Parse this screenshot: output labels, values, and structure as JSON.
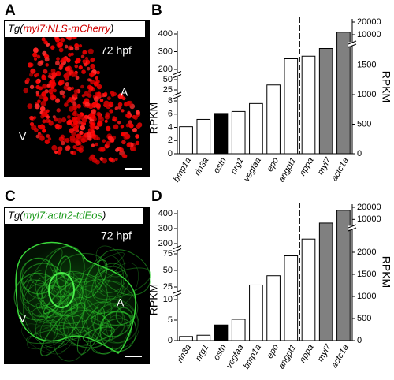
{
  "panels": {
    "A": {
      "letter": "A",
      "tg_prefix": "Tg(",
      "tg_gene": "myl7:NLS-mCherry",
      "tg_suffix": ")",
      "stage": "72 hpf",
      "atrium": "A",
      "ventricle": "V"
    },
    "C": {
      "letter": "C",
      "tg_prefix": "Tg(",
      "tg_gene": "myl7:actn2-tdEos",
      "tg_suffix": ")",
      "stage": "72 hpf",
      "atrium": "A",
      "ventricle": "V"
    }
  },
  "chart_data": [
    {
      "type": "bar",
      "panel_label": "B",
      "y_label": "RPKM",
      "y2_label": "RPKM",
      "categories": [
        "bmp1a",
        "rln3a",
        "ostn",
        "nrg1",
        "vegfaa",
        "epo",
        "angpt1",
        "nppa",
        "myl7",
        "actc1a"
      ],
      "y_segments": [
        {
          "ylim": [
            0,
            8
          ],
          "yticks": [
            0,
            2,
            4,
            6,
            8
          ]
        },
        {
          "ylim": [
            25,
            50
          ],
          "yticks": [
            25,
            50
          ]
        },
        {
          "ylim": [
            200,
            400
          ],
          "yticks": [
            200,
            300,
            400
          ]
        }
      ],
      "y2_segments": [
        {
          "ylim": [
            0,
            1800
          ],
          "yticks": [
            0,
            500,
            1000,
            1500
          ]
        },
        {
          "ylim": [
            5000,
            20000
          ],
          "yticks": [
            10000,
            20000
          ]
        }
      ],
      "series": [
        {
          "colors": [
            "#ffffff",
            "#ffffff",
            "#000000",
            "#ffffff",
            "#ffffff",
            "#ffffff",
            "#ffffff",
            null,
            null,
            null
          ],
          "values": [
            4.1,
            5.2,
            6.1,
            6.4,
            7.6,
            37,
            260,
            null,
            null,
            null
          ]
        },
        {
          "axis": "y2",
          "colors": [
            null,
            null,
            null,
            null,
            null,
            null,
            null,
            "#ffffff",
            "#808080",
            "#808080"
          ],
          "values": [
            null,
            null,
            null,
            null,
            null,
            null,
            null,
            1650,
            1780,
            12000
          ]
        }
      ]
    },
    {
      "type": "bar",
      "panel_label": "D",
      "y_label": "RPKM",
      "y2_label": "RPKM",
      "categories": [
        "rln3a",
        "nrg1",
        "ostn",
        "vegfaa",
        "bmp1a",
        "epo",
        "angpt1",
        "nppa",
        "myl7",
        "actc1a"
      ],
      "y_segments": [
        {
          "ylim": [
            0,
            10
          ],
          "yticks": [
            0,
            5,
            10
          ]
        },
        {
          "ylim": [
            25,
            75
          ],
          "yticks": [
            25,
            50,
            75
          ]
        },
        {
          "ylim": [
            200,
            400
          ],
          "yticks": [
            200,
            300,
            400
          ]
        }
      ],
      "y2_segments": [
        {
          "ylim": [
            0,
            2500
          ],
          "yticks": [
            0,
            500,
            1000,
            1500,
            2000
          ]
        },
        {
          "ylim": [
            5000,
            20000
          ],
          "yticks": [
            10000,
            20000
          ]
        }
      ],
      "series": [
        {
          "colors": [
            "#ffffff",
            "#ffffff",
            "#000000",
            "#ffffff",
            "#ffffff",
            "#ffffff",
            "#ffffff",
            null,
            null,
            null
          ],
          "values": [
            1.0,
            1.3,
            3.8,
            5.2,
            28,
            42,
            72,
            null,
            null,
            null
          ]
        },
        {
          "axis": "y2",
          "colors": [
            null,
            null,
            null,
            null,
            null,
            null,
            null,
            "#ffffff",
            "#808080",
            "#808080"
          ],
          "values": [
            null,
            null,
            null,
            null,
            null,
            null,
            null,
            2300,
            7000,
            17500
          ]
        }
      ]
    }
  ]
}
